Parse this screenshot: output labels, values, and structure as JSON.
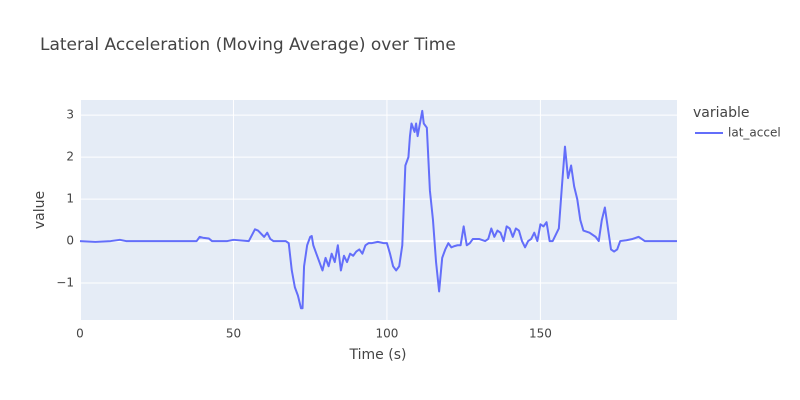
{
  "chart_data": {
    "type": "line",
    "title": "Lateral Acceleration (Moving Average) over Time",
    "x_label": "Time (s)",
    "y_label": "value",
    "legend_title": "variable",
    "x": [
      0,
      5,
      10,
      13,
      15,
      20,
      30,
      38,
      39,
      40,
      42,
      43,
      48,
      50,
      55,
      57,
      58,
      60,
      61,
      62,
      63,
      67,
      68,
      69,
      70,
      71,
      72,
      72.5,
      73,
      74,
      75,
      75.5,
      76,
      77,
      78,
      79,
      80,
      81,
      82,
      83,
      84,
      85,
      86,
      87,
      88,
      89,
      90,
      91,
      92,
      93,
      94,
      95,
      97,
      99,
      100,
      101,
      102,
      103,
      104,
      105,
      106,
      107,
      107.5,
      108,
      109,
      109.5,
      110,
      111,
      111.5,
      112,
      113,
      114,
      115,
      116,
      117,
      118,
      119,
      120,
      121,
      122,
      123,
      124,
      125,
      126,
      127,
      128,
      130,
      132,
      133,
      134,
      135,
      136,
      137,
      138,
      139,
      140,
      141,
      142,
      143,
      144,
      145,
      146,
      147,
      148,
      149,
      150,
      151,
      152,
      153,
      154,
      156,
      157,
      158,
      159,
      160,
      161,
      162,
      163,
      164,
      166,
      168,
      169,
      170,
      171,
      172,
      173,
      174,
      175,
      176,
      178,
      180,
      182,
      183,
      184,
      190,
      194.5
    ],
    "series": [
      {
        "name": "lat_accel",
        "color": "#636efa",
        "values": [
          0,
          -0.02,
          0,
          0.03,
          0,
          0,
          0,
          0,
          0.1,
          0.08,
          0.06,
          0,
          0,
          0.03,
          0,
          0.28,
          0.25,
          0.1,
          0.2,
          0.05,
          0,
          0,
          -0.05,
          -0.7,
          -1.1,
          -1.3,
          -1.6,
          -1.6,
          -0.6,
          -0.1,
          0.1,
          0.12,
          -0.1,
          -0.3,
          -0.5,
          -0.7,
          -0.4,
          -0.6,
          -0.3,
          -0.5,
          -0.1,
          -0.7,
          -0.35,
          -0.5,
          -0.3,
          -0.35,
          -0.25,
          -0.2,
          -0.3,
          -0.1,
          -0.05,
          -0.05,
          -0.02,
          -0.05,
          -0.05,
          -0.3,
          -0.6,
          -0.7,
          -0.6,
          -0.1,
          1.8,
          2.0,
          2.5,
          2.8,
          2.6,
          2.8,
          2.5,
          2.9,
          3.1,
          2.8,
          2.7,
          1.2,
          0.5,
          -0.5,
          -1.2,
          -0.4,
          -0.2,
          -0.05,
          -0.15,
          -0.12,
          -0.1,
          -0.1,
          0.35,
          -0.1,
          -0.05,
          0.05,
          0.05,
          0,
          0.05,
          0.3,
          0.1,
          0.25,
          0.2,
          0,
          0.35,
          0.3,
          0.1,
          0.3,
          0.25,
          0,
          -0.15,
          0,
          0.05,
          0.2,
          0,
          0.4,
          0.35,
          0.45,
          0,
          0,
          0.3,
          1.3,
          2.25,
          1.5,
          1.8,
          1.3,
          1.0,
          0.5,
          0.25,
          0.2,
          0.1,
          0,
          0.5,
          0.8,
          0.3,
          -0.2,
          -0.25,
          -0.2,
          0,
          0.02,
          0.05,
          0.1,
          0.05,
          0,
          0,
          0
        ]
      }
    ],
    "xlim": [
      0,
      194.5
    ],
    "xticks": [
      0,
      50,
      100,
      150
    ],
    "ylim": [
      -1.88,
      3.36
    ],
    "yticks": [
      {
        "value": -1,
        "label": "−1"
      },
      0,
      1,
      2,
      3
    ],
    "grid": true,
    "legend": "right"
  }
}
